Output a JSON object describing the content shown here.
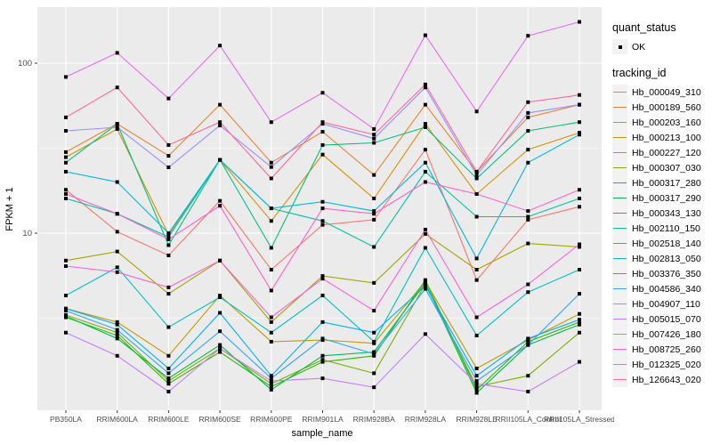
{
  "chart": {
    "y_axis_title": "FPKM + 1",
    "x_axis_title": "sample_name",
    "legend": {
      "quant_title": "quant_status",
      "quant_ok_label": "OK",
      "tracking_title": "tracking_id"
    }
  },
  "chart_data": {
    "type": "line",
    "title": "",
    "xlabel": "sample_name",
    "ylabel": "FPKM + 1",
    "y_scale": "log10",
    "ylim": [
      0.9,
      215
    ],
    "y_major_ticks": [
      10,
      100
    ],
    "y_minor_gridlines": [
      3.162,
      31.62
    ],
    "y_tick_labels": [
      "10",
      "100"
    ],
    "grid": "white-on-gray-panel",
    "panel_background": "#EBEBEB",
    "legend_position": "right",
    "marker": "small-black-square (quant_status OK)",
    "categories": [
      "PB350LA",
      "RRIM600LA",
      "RRIM600LE",
      "RRIM600SE",
      "RRIM600PE",
      "RRIM901LA",
      "RRIM928BA",
      "RRIM928LA",
      "RRIM928LE",
      "RRII105LA_Control",
      "RRII105LA_Stressed"
    ],
    "series": [
      {
        "name": "Hb_000049_310",
        "color": "#F8766D",
        "values": [
          18,
          10.2,
          7.4,
          15.5,
          6.1,
          11.2,
          12,
          31,
          5.3,
          12,
          14.3
        ]
      },
      {
        "name": "Hb_000189_560",
        "color": "#EA8331",
        "values": [
          30,
          44,
          28.5,
          57,
          26,
          39.5,
          22,
          57,
          23,
          48,
          57
        ]
      },
      {
        "name": "Hb_000203_160",
        "color": "#D89000",
        "values": [
          28,
          41,
          9.8,
          27,
          11.8,
          29,
          16,
          44,
          17,
          31,
          39
        ]
      },
      {
        "name": "Hb_000213_100",
        "color": "#C09B00",
        "values": [
          3.6,
          3.0,
          1.9,
          4.3,
          2.3,
          2.35,
          2.25,
          5.2,
          1.6,
          2.35,
          3.35
        ]
      },
      {
        "name": "Hb_000227_120",
        "color": "#A3A500",
        "values": [
          6.9,
          7.8,
          4.4,
          6.9,
          3.0,
          5.6,
          5.1,
          9.9,
          6.1,
          8.7,
          8.3
        ]
      },
      {
        "name": "Hb_000307_030",
        "color": "#7CAE00",
        "values": [
          3.3,
          2.6,
          1.35,
          2.1,
          1.3,
          1.8,
          1.5,
          5.0,
          1.25,
          1.45,
          2.6
        ]
      },
      {
        "name": "Hb_000317_280",
        "color": "#39B600",
        "values": [
          3.2,
          2.5,
          1.3,
          2.0,
          1.25,
          1.75,
          1.9,
          5.3,
          1.2,
          2.3,
          3.0
        ]
      },
      {
        "name": "Hb_000317_290",
        "color": "#00BB4E",
        "values": [
          3.25,
          2.4,
          1.4,
          2.2,
          1.2,
          1.9,
          2.0,
          5.1,
          1.15,
          2.2,
          2.9
        ]
      },
      {
        "name": "Hb_000343_130",
        "color": "#00C087",
        "values": [
          26,
          44,
          8.5,
          27,
          8.2,
          33,
          34,
          42,
          21,
          40,
          45
        ]
      },
      {
        "name": "Hb_002110_150",
        "color": "#00C1A3",
        "values": [
          16,
          13,
          9.5,
          27,
          14,
          11.8,
          8.3,
          23,
          12.5,
          12.5,
          16
        ]
      },
      {
        "name": "Hb_002518_140",
        "color": "#00BFC4",
        "values": [
          4.3,
          6.3,
          2.8,
          4.2,
          2.6,
          4.3,
          2.3,
          8.2,
          2.5,
          4.5,
          6.1
        ]
      },
      {
        "name": "Hb_002813_050",
        "color": "#00BAE0",
        "values": [
          23,
          20,
          10,
          27,
          14,
          15.3,
          13.5,
          26,
          7.1,
          26,
          38
        ]
      },
      {
        "name": "Hb_003376_350",
        "color": "#00B0F6",
        "values": [
          3.6,
          2.9,
          1.6,
          3.4,
          1.45,
          3.0,
          2.6,
          4.9,
          1.45,
          2.4,
          3.1
        ]
      },
      {
        "name": "Hb_004586_340",
        "color": "#35A2FF",
        "values": [
          3.5,
          2.7,
          1.5,
          2.65,
          1.4,
          2.4,
          1.95,
          4.7,
          1.35,
          2.2,
          4.4
        ]
      },
      {
        "name": "Hb_004907_110",
        "color": "#9590FF",
        "values": [
          40,
          42,
          24.4,
          43,
          24.5,
          44,
          36,
          72,
          22,
          51,
          57
        ]
      },
      {
        "name": "Hb_005015_070",
        "color": "#C77CFF",
        "values": [
          2.6,
          1.9,
          1.17,
          2.1,
          1.35,
          1.4,
          1.24,
          2.55,
          1.3,
          1.17,
          1.75
        ]
      },
      {
        "name": "Hb_007426_180",
        "color": "#E76BF3",
        "values": [
          83,
          115,
          62,
          127,
          45,
          67,
          41,
          146,
          52,
          145,
          175
        ]
      },
      {
        "name": "Hb_008725_260",
        "color": "#FA62DB",
        "values": [
          6.4,
          5.9,
          4.8,
          6.9,
          3.2,
          5.4,
          3.5,
          10.5,
          3.2,
          5.0,
          8.6
        ]
      },
      {
        "name": "Hb_012325_020",
        "color": "#FF61CC",
        "values": [
          17,
          13,
          9.2,
          14.5,
          4.6,
          14,
          13,
          20,
          17,
          13.5,
          18
        ]
      },
      {
        "name": "Hb_126643_020",
        "color": "#FF6A98",
        "values": [
          48,
          72,
          33,
          45,
          21,
          45,
          38,
          75,
          23,
          59,
          65
        ]
      }
    ]
  }
}
